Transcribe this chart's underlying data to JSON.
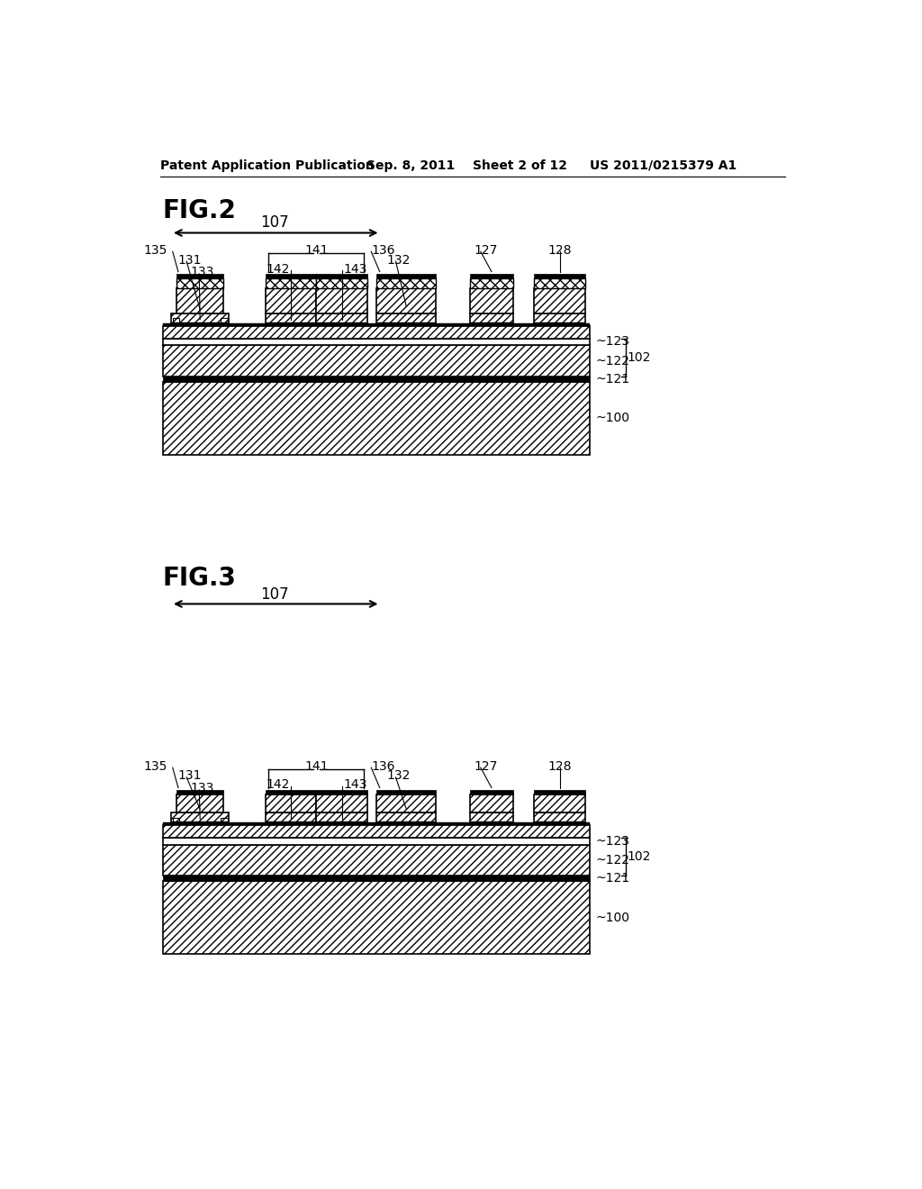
{
  "header_left": "Patent Application Publication",
  "header_date": "Sep. 8, 2011",
  "header_sheet": "Sheet 2 of 12",
  "header_right": "US 2011/0215379 A1",
  "fig2_label": "FIG.2",
  "fig3_label": "FIG.3",
  "background_color": "#ffffff"
}
